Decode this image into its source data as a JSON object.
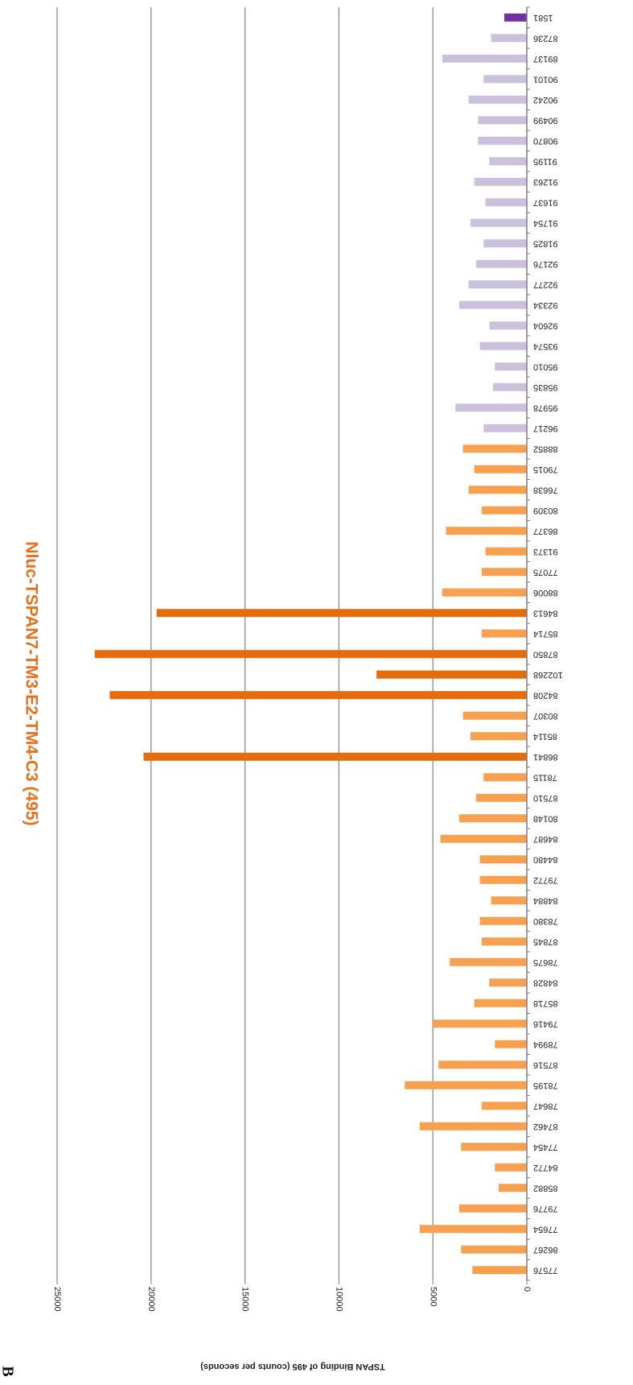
{
  "panel_label": "B",
  "colors": {
    "title": "#e8701a",
    "grid": "#8c8c8c",
    "axis": "#7f7f7f",
    "light_orange": "#f7a04f",
    "dark_orange": "#e46c0a",
    "lavender": "#cbc1dd",
    "purple": "#7030a0"
  },
  "chart_data": {
    "type": "bar",
    "orientation": "horizontal (page rotated 180°)",
    "title": "Nluc-TSPAN7-TM3-E2-TM4-C3 (495)",
    "ylabel": "TSPAN Binding  of 495 (counts per seconds)",
    "xlabel": "",
    "ylim": [
      0,
      25000
    ],
    "yticks": [
      0,
      5000,
      10000,
      15000,
      20000,
      25000
    ],
    "grid": true,
    "legend": "none",
    "categories": [
      "1581",
      "87236",
      "89137",
      "90101",
      "90242",
      "90499",
      "90870",
      "91195",
      "91263",
      "91637",
      "91754",
      "91825",
      "92176",
      "92277",
      "92334",
      "92604",
      "93574",
      "95010",
      "95835",
      "95978",
      "96217",
      "88852",
      "79015",
      "76638",
      "80309",
      "86377",
      "91373",
      "77075",
      "88006",
      "84613",
      "85714",
      "87850",
      "102268",
      "84208",
      "80307",
      "85114",
      "86841",
      "78115",
      "87510",
      "80148",
      "84687",
      "84480",
      "79772",
      "84884",
      "78380",
      "87845",
      "78675",
      "84828",
      "85718",
      "79416",
      "78994",
      "87516",
      "78195",
      "78647",
      "87462",
      "77454",
      "84772",
      "85882",
      "79776",
      "77654",
      "86267",
      "77576"
    ],
    "values": [
      1200,
      1900,
      4500,
      2300,
      3100,
      2600,
      2600,
      2000,
      2800,
      2200,
      3000,
      2300,
      2700,
      3100,
      3600,
      2000,
      2500,
      1700,
      1800,
      3800,
      2300,
      3400,
      2800,
      3100,
      2400,
      4300,
      2200,
      2400,
      4500,
      19700,
      2400,
      23000,
      8000,
      22200,
      3400,
      3000,
      20400,
      2300,
      2700,
      3600,
      4600,
      2500,
      2500,
      1900,
      2500,
      2400,
      4100,
      2000,
      2800,
      5000,
      1700,
      4700,
      6500,
      2400,
      5700,
      3500,
      1700,
      1500,
      3600,
      5700,
      3500,
      2900
    ],
    "bar_colors": [
      "purple",
      "lavender",
      "lavender",
      "lavender",
      "lavender",
      "lavender",
      "lavender",
      "lavender",
      "lavender",
      "lavender",
      "lavender",
      "lavender",
      "lavender",
      "lavender",
      "lavender",
      "lavender",
      "lavender",
      "lavender",
      "lavender",
      "lavender",
      "lavender",
      "light_orange",
      "light_orange",
      "light_orange",
      "light_orange",
      "light_orange",
      "light_orange",
      "light_orange",
      "light_orange",
      "dark_orange",
      "light_orange",
      "dark_orange",
      "dark_orange",
      "dark_orange",
      "light_orange",
      "light_orange",
      "dark_orange",
      "light_orange",
      "light_orange",
      "light_orange",
      "light_orange",
      "light_orange",
      "light_orange",
      "light_orange",
      "light_orange",
      "light_orange",
      "light_orange",
      "light_orange",
      "light_orange",
      "light_orange",
      "light_orange",
      "light_orange",
      "light_orange",
      "light_orange",
      "light_orange",
      "light_orange",
      "light_orange",
      "light_orange",
      "light_orange",
      "light_orange",
      "light_orange",
      "light_orange"
    ]
  }
}
